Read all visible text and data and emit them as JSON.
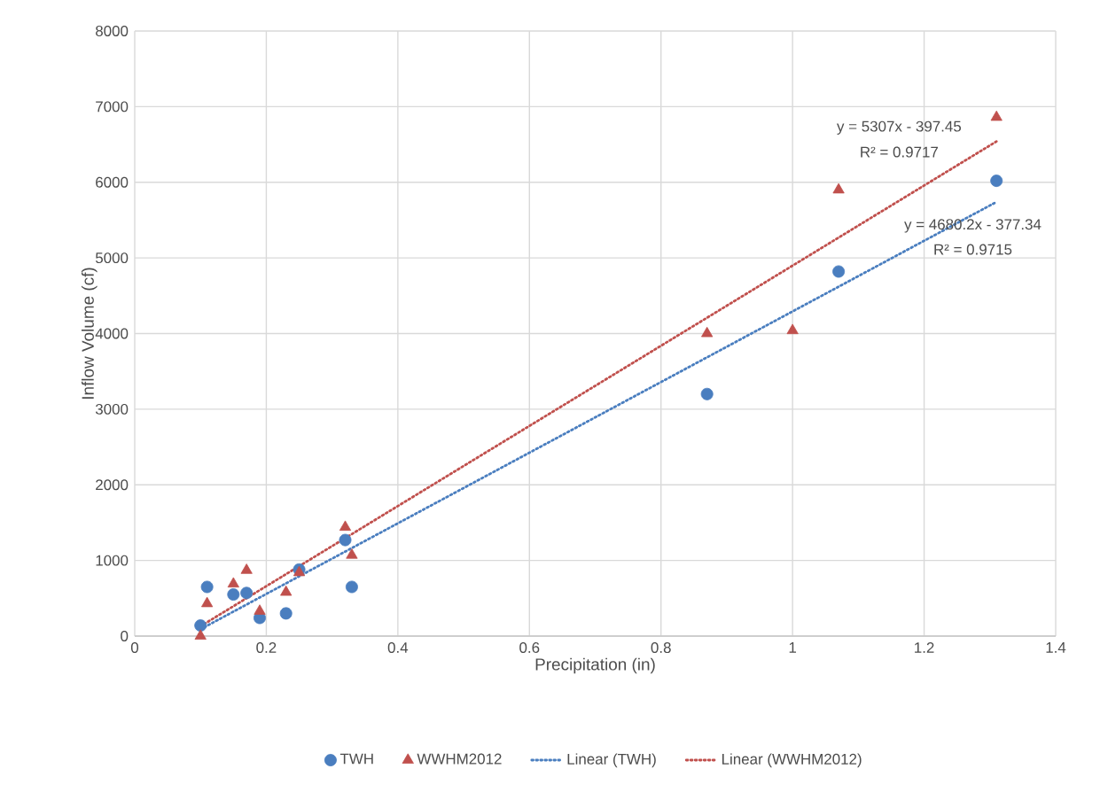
{
  "chart_data": {
    "type": "scatter",
    "xlabel": "Precipitation (in)",
    "ylabel": "Inflow Volume (cf)",
    "xlim": [
      0,
      1.4
    ],
    "ylim": [
      0,
      8000
    ],
    "xticks": [
      0,
      0.2,
      0.4,
      0.6,
      0.8,
      1,
      1.2,
      1.4
    ],
    "yticks": [
      0,
      1000,
      2000,
      3000,
      4000,
      5000,
      6000,
      7000,
      8000
    ],
    "grid": true,
    "legend": "bottom",
    "series": [
      {
        "name": "TWH",
        "type": "scatter",
        "marker": "circle",
        "color": "#4a7ebf",
        "x": [
          0.1,
          0.11,
          0.15,
          0.17,
          0.19,
          0.23,
          0.25,
          0.32,
          0.33,
          0.87,
          1.07,
          1.31
        ],
        "values": [
          140,
          650,
          550,
          570,
          240,
          300,
          880,
          1270,
          650,
          3200,
          4820,
          6020
        ]
      },
      {
        "name": "WWHM2012",
        "type": "scatter",
        "marker": "triangle",
        "color": "#c0504d",
        "x": [
          0.1,
          0.11,
          0.15,
          0.17,
          0.19,
          0.23,
          0.25,
          0.32,
          0.33,
          0.87,
          1.0,
          1.07,
          1.31
        ],
        "values": [
          0,
          430,
          690,
          870,
          330,
          580,
          840,
          1440,
          1070,
          4000,
          4040,
          5900,
          6860
        ]
      },
      {
        "name": "Linear (TWH)",
        "type": "line",
        "line_style": "dotted",
        "color": "#4a7ebf",
        "x": [
          0.1,
          1.31
        ],
        "values": [
          90,
          5740
        ]
      },
      {
        "name": "Linear (WWHM2012)",
        "type": "line",
        "line_style": "dotted",
        "color": "#c0504d",
        "x": [
          0.1,
          1.31
        ],
        "values": [
          130,
          6540
        ]
      }
    ],
    "annotations": [
      "y = 5307x - 397.45",
      "R² = 0.9717",
      "y = 4680.2x - 377.34",
      "R² = 0.9715"
    ]
  }
}
